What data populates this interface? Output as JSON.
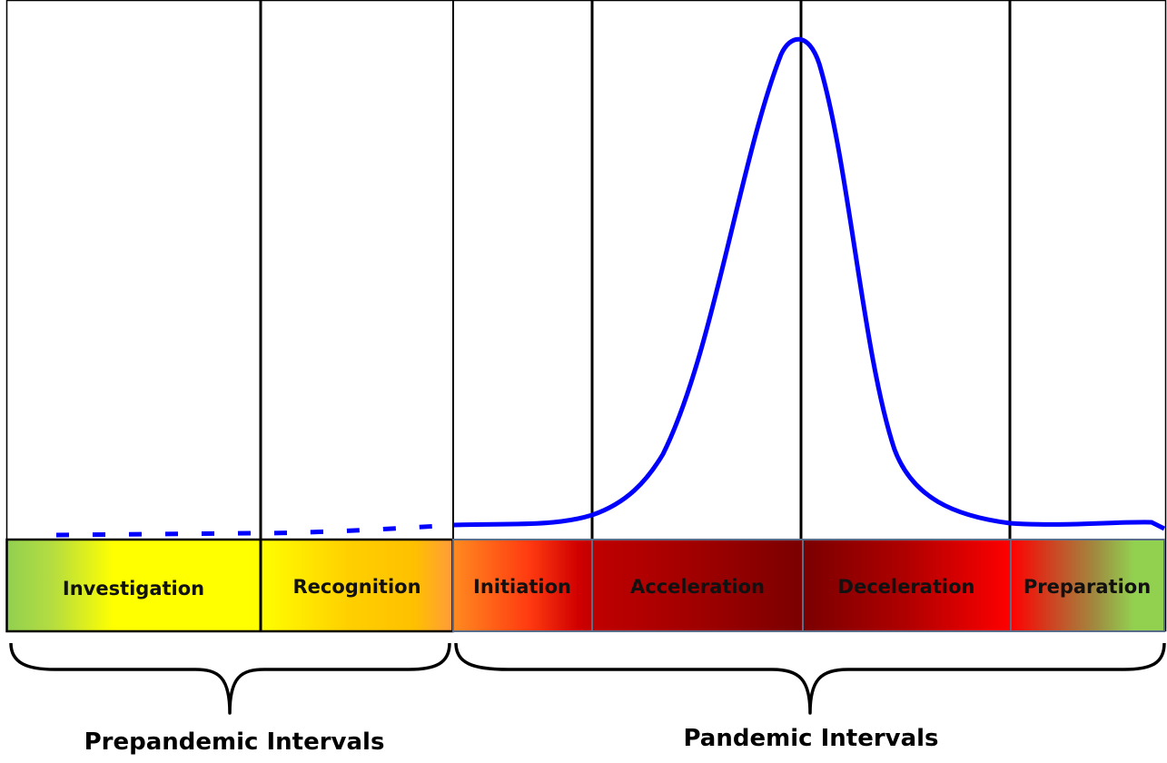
{
  "phases": [
    {
      "label": "Investigation"
    },
    {
      "label": "Recognition"
    },
    {
      "label": "Initiation"
    },
    {
      "label": "Acceleration"
    },
    {
      "label": "Deceleration"
    },
    {
      "label": "Preparation"
    }
  ],
  "groups": [
    {
      "label": "Prepandemic Intervals"
    },
    {
      "label": "Pandemic Intervals"
    }
  ],
  "colors": {
    "curve": "#0000ff",
    "green": "#92d050",
    "yellow": "#ffff00",
    "gold": "#ffc000",
    "orange": "#ff7f27",
    "red": "#ff0000",
    "crimson": "#c00000",
    "dark_red": "#7f0000"
  }
}
